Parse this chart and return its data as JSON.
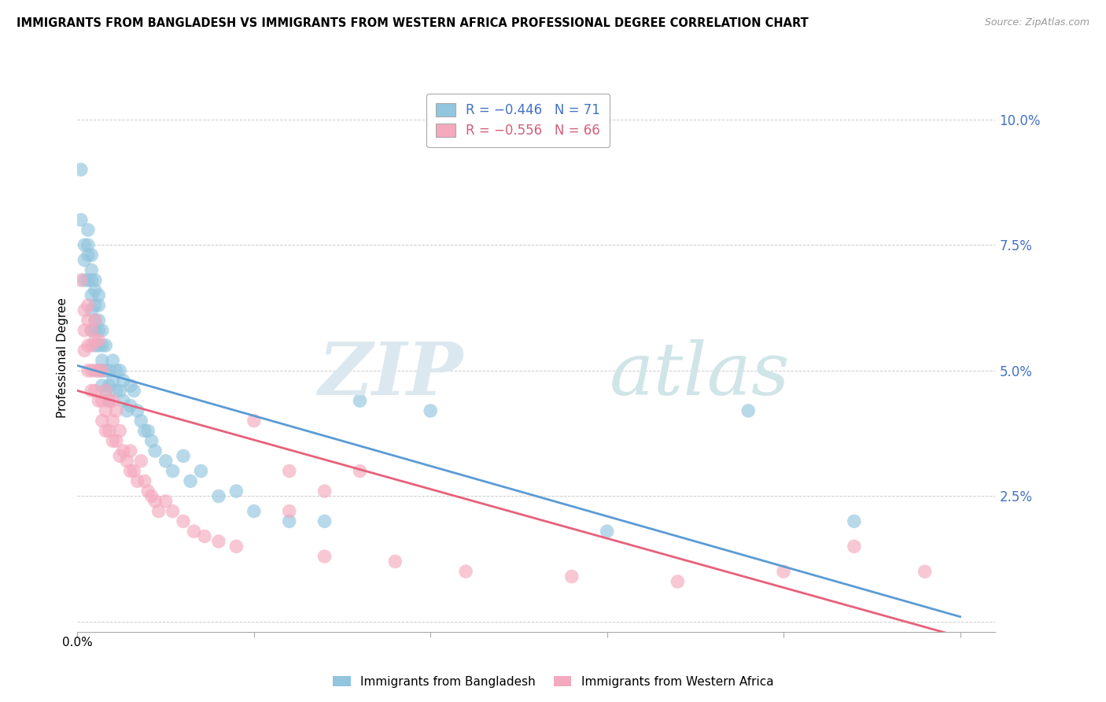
{
  "title": "IMMIGRANTS FROM BANGLADESH VS IMMIGRANTS FROM WESTERN AFRICA PROFESSIONAL DEGREE CORRELATION CHART",
  "source": "Source: ZipAtlas.com",
  "ylabel": "Professional Degree",
  "x_ticks": [
    0.0,
    0.05,
    0.1,
    0.15,
    0.2,
    0.25
  ],
  "y_ticks": [
    0.0,
    0.025,
    0.05,
    0.075,
    0.1
  ],
  "y_tick_labels": [
    "",
    "2.5%",
    "5.0%",
    "7.5%",
    "10.0%"
  ],
  "xlim": [
    0.0,
    0.26
  ],
  "ylim": [
    -0.002,
    0.107
  ],
  "color_bangladesh": "#92c5de",
  "color_western_africa": "#f4a9be",
  "color_line_bangladesh": "#5b9bd5",
  "color_line_western_africa": "#e8607a",
  "bangladesh_x": [
    0.001,
    0.001,
    0.002,
    0.002,
    0.002,
    0.003,
    0.003,
    0.003,
    0.003,
    0.004,
    0.004,
    0.004,
    0.004,
    0.004,
    0.004,
    0.005,
    0.005,
    0.005,
    0.005,
    0.005,
    0.005,
    0.006,
    0.006,
    0.006,
    0.006,
    0.006,
    0.006,
    0.007,
    0.007,
    0.007,
    0.007,
    0.007,
    0.008,
    0.008,
    0.008,
    0.009,
    0.009,
    0.009,
    0.01,
    0.01,
    0.011,
    0.011,
    0.012,
    0.012,
    0.013,
    0.013,
    0.014,
    0.015,
    0.015,
    0.016,
    0.017,
    0.018,
    0.019,
    0.02,
    0.021,
    0.022,
    0.025,
    0.027,
    0.03,
    0.032,
    0.035,
    0.04,
    0.045,
    0.05,
    0.06,
    0.07,
    0.08,
    0.1,
    0.15,
    0.19,
    0.22
  ],
  "bangladesh_y": [
    0.09,
    0.08,
    0.075,
    0.072,
    0.068,
    0.078,
    0.075,
    0.073,
    0.068,
    0.073,
    0.07,
    0.068,
    0.065,
    0.062,
    0.058,
    0.068,
    0.066,
    0.063,
    0.06,
    0.058,
    0.055,
    0.065,
    0.063,
    0.06,
    0.058,
    0.055,
    0.05,
    0.058,
    0.055,
    0.052,
    0.05,
    0.047,
    0.055,
    0.05,
    0.046,
    0.05,
    0.047,
    0.044,
    0.052,
    0.048,
    0.05,
    0.046,
    0.05,
    0.046,
    0.048,
    0.044,
    0.042,
    0.047,
    0.043,
    0.046,
    0.042,
    0.04,
    0.038,
    0.038,
    0.036,
    0.034,
    0.032,
    0.03,
    0.033,
    0.028,
    0.03,
    0.025,
    0.026,
    0.022,
    0.02,
    0.02,
    0.044,
    0.042,
    0.018,
    0.042,
    0.02
  ],
  "western_africa_x": [
    0.001,
    0.002,
    0.002,
    0.002,
    0.003,
    0.003,
    0.003,
    0.003,
    0.004,
    0.004,
    0.004,
    0.004,
    0.005,
    0.005,
    0.005,
    0.005,
    0.006,
    0.006,
    0.006,
    0.007,
    0.007,
    0.007,
    0.008,
    0.008,
    0.008,
    0.009,
    0.009,
    0.01,
    0.01,
    0.01,
    0.011,
    0.011,
    0.012,
    0.012,
    0.013,
    0.014,
    0.015,
    0.015,
    0.016,
    0.017,
    0.018,
    0.019,
    0.02,
    0.021,
    0.022,
    0.023,
    0.025,
    0.027,
    0.03,
    0.033,
    0.036,
    0.04,
    0.045,
    0.05,
    0.06,
    0.07,
    0.09,
    0.11,
    0.14,
    0.17,
    0.2,
    0.22,
    0.24,
    0.07,
    0.08,
    0.06
  ],
  "western_africa_y": [
    0.068,
    0.062,
    0.058,
    0.054,
    0.063,
    0.06,
    0.055,
    0.05,
    0.058,
    0.055,
    0.05,
    0.046,
    0.06,
    0.056,
    0.05,
    0.046,
    0.056,
    0.05,
    0.044,
    0.05,
    0.044,
    0.04,
    0.046,
    0.042,
    0.038,
    0.044,
    0.038,
    0.044,
    0.04,
    0.036,
    0.042,
    0.036,
    0.038,
    0.033,
    0.034,
    0.032,
    0.034,
    0.03,
    0.03,
    0.028,
    0.032,
    0.028,
    0.026,
    0.025,
    0.024,
    0.022,
    0.024,
    0.022,
    0.02,
    0.018,
    0.017,
    0.016,
    0.015,
    0.04,
    0.022,
    0.013,
    0.012,
    0.01,
    0.009,
    0.008,
    0.01,
    0.015,
    0.01,
    0.026,
    0.03,
    0.03
  ]
}
